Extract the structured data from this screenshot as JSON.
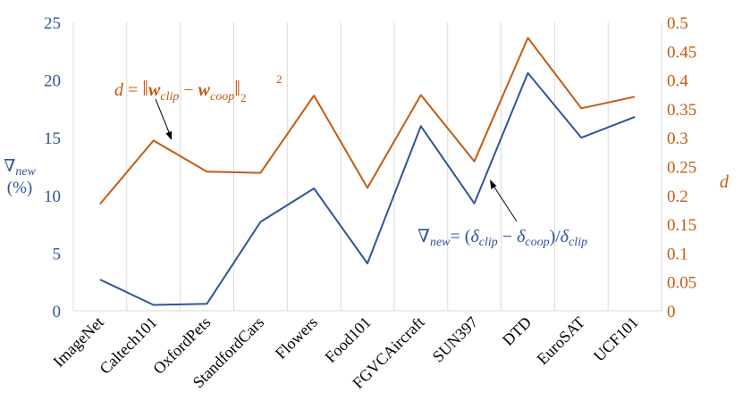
{
  "chart_data": {
    "type": "line",
    "categories": [
      "ImageNet",
      "Caltech101",
      "OxfordPets",
      "StandfordCars",
      "Flowers",
      "Food101",
      "FGVCAircraft",
      "SUN397",
      "DTD",
      "EuroSAT",
      "UCF101"
    ],
    "series": [
      {
        "name": "∇new = (δclip − δcoop) / δclip",
        "axis": "left",
        "color": "#2F5597",
        "values": [
          2.7,
          0.5,
          0.6,
          7.7,
          10.6,
          4.1,
          16.0,
          9.3,
          20.6,
          15.0,
          16.8
        ]
      },
      {
        "name": "d = ‖wclip − wcoop‖₂²",
        "axis": "right",
        "color": "#C55A11",
        "values": [
          0.185,
          0.295,
          0.241,
          0.239,
          0.373,
          0.213,
          0.374,
          0.259,
          0.473,
          0.351,
          0.371
        ]
      }
    ],
    "y_left": {
      "label_main": "∇",
      "label_sub": "new",
      "label_unit": "(%)",
      "range": [
        0,
        25
      ],
      "ticks": [
        "0",
        "5",
        "10",
        "15",
        "20",
        "25"
      ],
      "color": "#2F5597"
    },
    "y_right": {
      "label": "d",
      "range": [
        0,
        0.5
      ],
      "ticks": [
        "0",
        "0.05",
        "0.1",
        "0.15",
        "0.2",
        "0.25",
        "0.3",
        "0.35",
        "0.4",
        "0.45",
        "0.5"
      ],
      "color": "#C55A11"
    },
    "grid": "vertical"
  },
  "annotations": {
    "d_formula": {
      "lhs": "d",
      "eq": " = ",
      "w1": "w",
      "w1_sub": "clip",
      "minus": " − ",
      "w2": "w",
      "w2_sub": "coop",
      "sub": "2",
      "sup": "2"
    },
    "nabla_formula": {
      "nabla": "∇",
      "nabla_sub": "new",
      "eq": "= (",
      "d1": "δ",
      "d1_sub": "clip",
      "minus": " − ",
      "d2": "δ",
      "d2_sub": "coop",
      "close": ")/",
      "d3": "δ",
      "d3_sub": "clip"
    }
  }
}
